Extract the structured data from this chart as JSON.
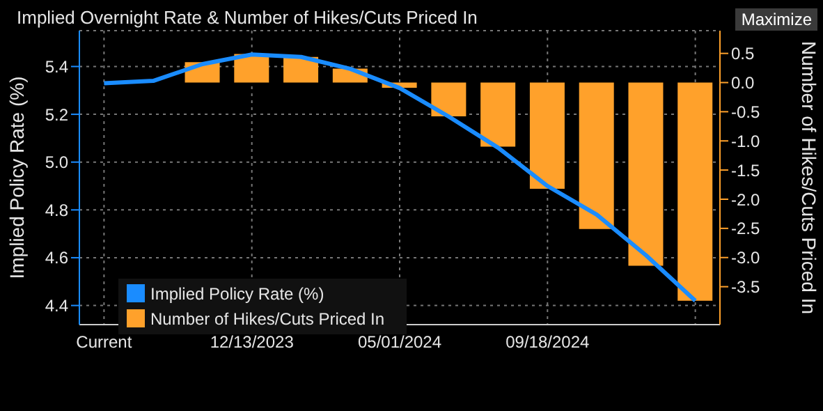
{
  "chart_data": {
    "type": "bar",
    "title": "Implied Overnight Rate & Number of Hikes/Cuts Priced In",
    "categories": [
      "Current",
      null,
      null,
      "12/13/2023",
      null,
      null,
      "05/01/2024",
      null,
      null,
      "09/18/2024",
      null,
      null,
      null
    ],
    "series": [
      {
        "name": "Implied Policy Rate (%)",
        "type": "line",
        "axis": "y",
        "color": "#1a8cff",
        "values": [
          5.33,
          5.34,
          5.41,
          5.45,
          5.44,
          5.39,
          5.31,
          5.19,
          5.06,
          4.9,
          4.78,
          4.61,
          4.42
        ]
      },
      {
        "name": "Number of Hikes/Cuts Priced In",
        "axis": "y2",
        "color": "#ffa12b",
        "values": [
          0,
          0,
          0.35,
          0.49,
          0.44,
          0.24,
          -0.09,
          -0.58,
          -1.1,
          -1.82,
          -2.51,
          -3.14,
          -3.74
        ]
      }
    ],
    "ylabel": "Implied Policy Rate (%)",
    "y2label": "Number of Hikes/Cuts Priced In",
    "ylim": [
      4.32,
      5.55
    ],
    "yticks": [
      4.4,
      4.6,
      4.8,
      {
        "value": 5,
        "label": "5.0"
      },
      5.2,
      5.4
    ],
    "y2lim": [
      -4.15,
      0.89
    ],
    "y2ticks": [
      -3.5,
      {
        "value": -3,
        "label": "-3.0"
      },
      -2.5,
      {
        "value": -2,
        "label": "-2.0"
      },
      -1.5,
      {
        "value": -1,
        "label": "-1.0"
      },
      -0.5,
      {
        "value": 0,
        "label": "0.0"
      },
      0.5
    ],
    "annotations": [
      "Maximize"
    ],
    "grid": true,
    "legend": "bottom left",
    "marker": "none",
    "line_style": "solid"
  }
}
